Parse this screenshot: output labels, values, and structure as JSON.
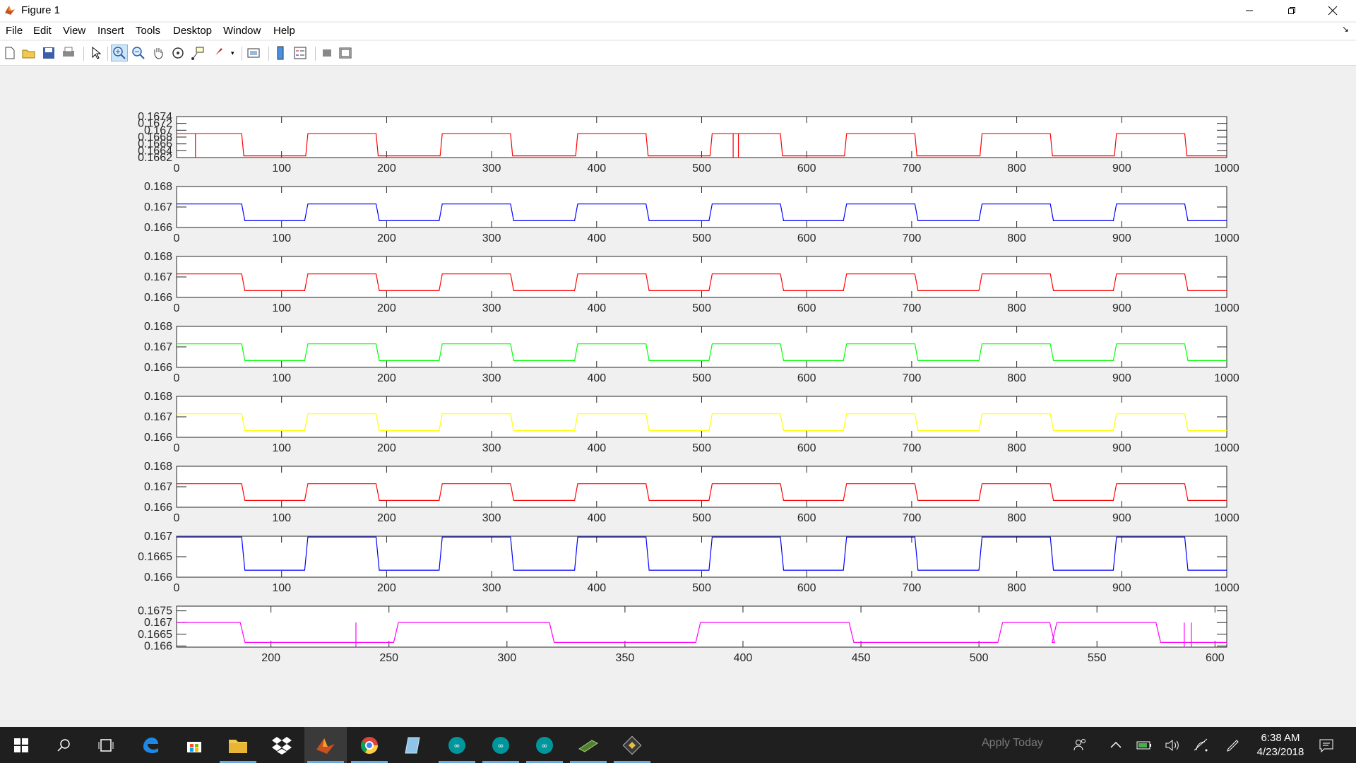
{
  "window": {
    "title": "Figure 1"
  },
  "menu": [
    "File",
    "Edit",
    "View",
    "Insert",
    "Tools",
    "Desktop",
    "Window",
    "Help"
  ],
  "toolbar_icons": [
    "new-figure-icon",
    "open-file-icon",
    "save-icon",
    "print-icon",
    "select-arrow-icon",
    "zoom-in-icon",
    "zoom-out-icon",
    "pan-hand-icon",
    "rotate-3d-icon",
    "data-cursor-icon",
    "brush-icon",
    "link-plot-icon",
    "insert-colorbar-icon",
    "insert-legend-icon",
    "hide-plot-tools-icon",
    "show-plot-tools-icon"
  ],
  "colors": {
    "red": "#ff0000",
    "blue": "#0000ff",
    "green": "#00ff00",
    "yellow": "#ffff00",
    "magenta": "#ff00ff"
  },
  "chart_data": [
    {
      "type": "line",
      "color": "red",
      "xlim": [
        0,
        1000
      ],
      "ylim": [
        0.1662,
        0.1674
      ],
      "xticks": [
        0,
        100,
        200,
        300,
        400,
        500,
        600,
        700,
        800,
        900,
        1000
      ],
      "yticks": [
        "0.1662",
        "0.1664",
        "0.1666",
        "0.1668",
        "0.167",
        "0.1672",
        "0.1674"
      ],
      "high": 0.1669,
      "low": 0.16625,
      "series": [
        {
          "x_high_start": [
            0,
            125,
            253,
            382,
            510,
            638,
            767,
            895
          ],
          "x_high_end": [
            62,
            190,
            318,
            447,
            575,
            703,
            832,
            960
          ],
          "spikes_x": [
            18,
            530,
            535
          ]
        }
      ]
    },
    {
      "type": "line",
      "color": "blue",
      "xlim": [
        0,
        1000
      ],
      "ylim": [
        0.166,
        0.168
      ],
      "xticks": [
        0,
        100,
        200,
        300,
        400,
        500,
        600,
        700,
        800,
        900,
        1000
      ],
      "yticks": [
        "0.166",
        "0.167",
        "0.168"
      ],
      "high": 0.16715,
      "low": 0.16633
    },
    {
      "type": "line",
      "color": "red",
      "xlim": [
        0,
        1000
      ],
      "ylim": [
        0.166,
        0.168
      ],
      "xticks": [
        0,
        100,
        200,
        300,
        400,
        500,
        600,
        700,
        800,
        900,
        1000
      ],
      "yticks": [
        "0.166",
        "0.167",
        "0.168"
      ],
      "high": 0.16715,
      "low": 0.16633
    },
    {
      "type": "line",
      "color": "green",
      "xlim": [
        0,
        1000
      ],
      "ylim": [
        0.166,
        0.168
      ],
      "xticks": [
        0,
        100,
        200,
        300,
        400,
        500,
        600,
        700,
        800,
        900,
        1000
      ],
      "yticks": [
        "0.166",
        "0.167",
        "0.168"
      ],
      "high": 0.16715,
      "low": 0.16633
    },
    {
      "type": "line",
      "color": "yellow",
      "xlim": [
        0,
        1000
      ],
      "ylim": [
        0.166,
        0.168
      ],
      "xticks": [
        0,
        100,
        200,
        300,
        400,
        500,
        600,
        700,
        800,
        900,
        1000
      ],
      "yticks": [
        "0.166",
        "0.167",
        "0.168"
      ],
      "high": 0.16715,
      "low": 0.16633
    },
    {
      "type": "line",
      "color": "red",
      "xlim": [
        0,
        1000
      ],
      "ylim": [
        0.166,
        0.168
      ],
      "xticks": [
        0,
        100,
        200,
        300,
        400,
        500,
        600,
        700,
        800,
        900,
        1000
      ],
      "yticks": [
        "0.166",
        "0.167",
        "0.168"
      ],
      "high": 0.16715,
      "low": 0.16633
    },
    {
      "type": "line",
      "color": "blue",
      "xlim": [
        0,
        1000
      ],
      "ylim": [
        0.166,
        0.167
      ],
      "xticks": [
        0,
        100,
        200,
        300,
        400,
        500,
        600,
        700,
        800,
        900,
        1000
      ],
      "yticks": [
        "0.166",
        "0.1665",
        "0.167"
      ],
      "high": 0.16698,
      "low": 0.16617
    },
    {
      "type": "line",
      "color": "magenta",
      "xlim": [
        160,
        605
      ],
      "ylim": [
        0.16595,
        0.1677
      ],
      "xticks": [
        200,
        250,
        300,
        350,
        400,
        450,
        500,
        550,
        600
      ],
      "yticks": [
        "0.166",
        "0.1665",
        "0.167",
        "0.1675"
      ],
      "high": 0.167,
      "low": 0.16615,
      "series": [
        {
          "x_high_start": [
            160,
            254,
            382,
            510,
            533
          ],
          "x_high_end": [
            187,
            318,
            445,
            530,
            575
          ],
          "spikes_x": [
            236,
            587,
            590
          ]
        }
      ]
    }
  ],
  "square_wave": {
    "x_high_start": [
      0,
      125,
      253,
      382,
      510,
      638,
      767,
      895
    ],
    "x_high_end": [
      62,
      190,
      318,
      447,
      575,
      703,
      832,
      960
    ]
  },
  "taskbar": {
    "apps": [
      "windows-start-icon",
      "search-icon",
      "task-view-icon",
      "edge-icon",
      "store-icon",
      "file-explorer-icon",
      "dropbox-icon",
      "matlab-icon",
      "chrome-icon",
      "notes-icon",
      "arduino-icon",
      "arduino-icon",
      "arduino-icon",
      "chip-icon",
      "app-icon"
    ],
    "ghost_text": "Apply Today",
    "time": "6:38 AM",
    "date": "4/23/2018"
  }
}
